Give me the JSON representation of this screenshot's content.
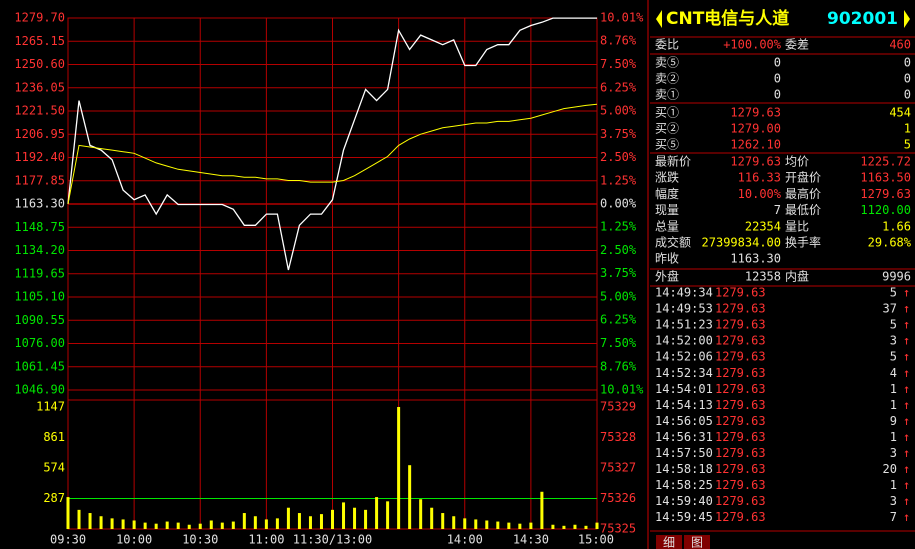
{
  "chart_data": [
    {
      "type": "line",
      "x": [
        "09:30",
        "09:35",
        "09:40",
        "09:45",
        "09:50",
        "09:55",
        "10:00",
        "10:05",
        "10:10",
        "10:15",
        "10:20",
        "10:25",
        "10:30",
        "10:35",
        "10:40",
        "10:45",
        "10:50",
        "10:55",
        "11:00",
        "11:05",
        "11:10",
        "11:15",
        "11:20",
        "11:25",
        "11:30",
        "13:05",
        "13:10",
        "13:15",
        "13:20",
        "13:25",
        "13:30",
        "13:35",
        "13:40",
        "13:45",
        "13:50",
        "13:55",
        "14:00",
        "14:05",
        "14:10",
        "14:15",
        "14:20",
        "14:25",
        "14:30",
        "14:35",
        "14:40",
        "14:45",
        "14:50",
        "14:55",
        "15:00"
      ],
      "series": [
        {
          "color": "#ffffff",
          "values": [
            1163.3,
            1228,
            1200,
            1197,
            1191,
            1172,
            1166,
            1169,
            1157,
            1169,
            1163,
            1163,
            1163,
            1163,
            1163,
            1160,
            1150,
            1150,
            1157,
            1157,
            1122,
            1150,
            1157,
            1157,
            1166,
            1197,
            1216,
            1235,
            1228,
            1235,
            1272,
            1260,
            1269,
            1266,
            1263,
            1266,
            1250,
            1250,
            1260,
            1263,
            1263,
            1272,
            1275,
            1277,
            1279.63,
            1279.63,
            1279.63,
            1279.63,
            1279.63
          ]
        },
        {
          "color": "#ffff00",
          "values": [
            1163.3,
            1200,
            1199,
            1198,
            1197,
            1196,
            1195,
            1192,
            1189,
            1187,
            1185,
            1184,
            1183,
            1182,
            1181,
            1181,
            1180,
            1180,
            1179,
            1179,
            1178,
            1178,
            1177,
            1177,
            1177,
            1178,
            1181,
            1185,
            1189,
            1193,
            1200,
            1204,
            1207,
            1209,
            1211,
            1212,
            1213,
            1214,
            1214,
            1215,
            1215,
            1216,
            1217,
            1219,
            1221,
            1223,
            1224,
            1225,
            1225.72
          ]
        }
      ],
      "ylim": [
        1046.9,
        1279.7
      ],
      "yticks": [
        {
          "value": 1279.7,
          "label": "1279.70"
        },
        1265.15,
        {
          "value": 1250.6,
          "label": "1250.60"
        },
        1236.05,
        {
          "value": 1221.5,
          "label": "1221.50"
        },
        1206.95,
        {
          "value": 1192.4,
          "label": "1192.40"
        },
        1177.85,
        {
          "value": 1163.3,
          "label": "1163.30"
        },
        1148.75,
        {
          "value": 1134.2,
          "label": "1134.20"
        },
        1119.65,
        {
          "value": 1105.1,
          "label": "1105.10"
        },
        1090.55,
        {
          "value": 1076,
          "label": "1076.00"
        },
        1061.45,
        {
          "value": 1046.9,
          "label": "1046.90"
        }
      ],
      "y2lim": [
        -10.01,
        10.01
      ],
      "y2ticks": [
        {
          "value": 10.01,
          "label": "10.01%"
        },
        {
          "value": 8.76,
          "label": "8.76%"
        },
        {
          "value": 7.5,
          "label": "7.50%"
        },
        {
          "value": 6.25,
          "label": "6.25%"
        },
        {
          "value": 5,
          "label": "5.00%"
        },
        {
          "value": 3.75,
          "label": "3.75%"
        },
        {
          "value": 2.5,
          "label": "2.50%"
        },
        {
          "value": 1.25,
          "label": "1.25%"
        },
        {
          "value": 0,
          "label": "0.00%"
        },
        {
          "value": -1.25,
          "label": "1.25%"
        },
        {
          "value": -2.5,
          "label": "2.50%"
        },
        {
          "value": -3.75,
          "label": "3.75%"
        },
        {
          "value": -5,
          "label": "5.00%"
        },
        {
          "value": -6.25,
          "label": "6.25%"
        },
        {
          "value": -7.5,
          "label": "7.50%"
        },
        {
          "value": -8.76,
          "label": "8.76%"
        },
        {
          "value": -10.01,
          "label": "10.01%"
        }
      ],
      "grid": true
    },
    {
      "type": "bar",
      "x": [
        "09:30",
        "09:35",
        "09:40",
        "09:45",
        "09:50",
        "09:55",
        "10:00",
        "10:05",
        "10:10",
        "10:15",
        "10:20",
        "10:25",
        "10:30",
        "10:35",
        "10:40",
        "10:45",
        "10:50",
        "10:55",
        "11:00",
        "11:05",
        "11:10",
        "11:15",
        "11:20",
        "11:25",
        "11:30",
        "13:05",
        "13:10",
        "13:15",
        "13:20",
        "13:25",
        "13:30",
        "13:35",
        "13:40",
        "13:45",
        "13:50",
        "13:55",
        "14:00",
        "14:05",
        "14:10",
        "14:15",
        "14:20",
        "14:25",
        "14:30",
        "14:35",
        "14:40",
        "14:45",
        "14:50",
        "14:55",
        "15:00"
      ],
      "color": "#ffff00",
      "values": [
        300,
        180,
        150,
        120,
        100,
        90,
        80,
        60,
        50,
        70,
        60,
        40,
        50,
        80,
        60,
        70,
        150,
        120,
        90,
        100,
        200,
        150,
        120,
        140,
        180,
        250,
        200,
        180,
        300,
        260,
        1147,
        600,
        280,
        200,
        150,
        120,
        100,
        90,
        80,
        70,
        60,
        50,
        60,
        350,
        40,
        30,
        40,
        30,
        60
      ],
      "ylim": [
        0,
        1147
      ],
      "yticks": [
        287,
        574,
        861,
        1147
      ],
      "y2lim": [
        75325,
        75329
      ],
      "y2ticks": [
        75325,
        75326,
        75327,
        75328,
        75329
      ],
      "xticks": [
        "09:30",
        "10:00",
        "10:30",
        "11:00",
        "11:30/13:00",
        "14:00",
        "14:30",
        "15:00"
      ]
    }
  ],
  "panel": {
    "name": "CNT电信与人道",
    "code": "902001",
    "ratio": {
      "label": "委比",
      "value": "+100.00%",
      "label2": "委差",
      "value2": "460"
    },
    "asks": [
      {
        "label": "卖⑤",
        "price": "0",
        "volume": "0"
      },
      {
        "label": "卖②",
        "price": "0",
        "volume": "0"
      },
      {
        "label": "卖①",
        "price": "0",
        "volume": "0"
      }
    ],
    "bids": [
      {
        "label": "买①",
        "price": "1279.63",
        "volume": "454"
      },
      {
        "label": "买②",
        "price": "1279.00",
        "volume": "1"
      },
      {
        "label": "买⑤",
        "price": "1262.10",
        "volume": "5"
      }
    ],
    "stats": [
      {
        "label": "最新价",
        "value": "1279.63",
        "label2": "均价",
        "value2": "1225.72"
      },
      {
        "label": "涨跌",
        "value": "116.33",
        "label2": "开盘价",
        "value2": "1163.50"
      },
      {
        "label": "幅度",
        "value": "10.00%",
        "label2": "最高价",
        "value2": "1279.63"
      },
      {
        "label": "现量",
        "value": "7",
        "label2": "最低价",
        "value2": "1120.00"
      },
      {
        "label": "总量",
        "value": "22354",
        "label2": "量比",
        "value2": "1.66"
      },
      {
        "label": "成交额",
        "value": "27399834.00",
        "label2": "换手率",
        "value2": "29.68%"
      },
      {
        "label": "昨收",
        "value": "1163.30"
      }
    ],
    "outer": {
      "label": "外盘",
      "value": "12358",
      "label2": "内盘",
      "value2": "9996"
    },
    "trades": [
      {
        "time": "14:49:34",
        "price": "1279.63",
        "volume": "5",
        "arrow": "↑"
      },
      {
        "time": "14:49:53",
        "price": "1279.63",
        "volume": "37",
        "arrow": "↑"
      },
      {
        "time": "14:51:23",
        "price": "1279.63",
        "volume": "5",
        "arrow": "↑"
      },
      {
        "time": "14:52:00",
        "price": "1279.63",
        "volume": "3",
        "arrow": "↑"
      },
      {
        "time": "14:52:06",
        "price": "1279.63",
        "volume": "5",
        "arrow": "↑"
      },
      {
        "time": "14:52:34",
        "price": "1279.63",
        "volume": "4",
        "arrow": "↑"
      },
      {
        "time": "14:54:01",
        "price": "1279.63",
        "volume": "1",
        "arrow": "↑"
      },
      {
        "time": "14:54:13",
        "price": "1279.63",
        "volume": "1",
        "arrow": "↑"
      },
      {
        "time": "14:56:05",
        "price": "1279.63",
        "volume": "9",
        "arrow": "↑"
      },
      {
        "time": "14:56:31",
        "price": "1279.63",
        "volume": "1",
        "arrow": "↑"
      },
      {
        "time": "14:57:50",
        "price": "1279.63",
        "volume": "3",
        "arrow": "↑"
      },
      {
        "time": "14:58:18",
        "price": "1279.63",
        "volume": "20",
        "arrow": "↑"
      },
      {
        "time": "14:58:25",
        "price": "1279.63",
        "volume": "1",
        "arrow": "↑"
      },
      {
        "time": "14:59:40",
        "price": "1279.63",
        "volume": "3",
        "arrow": "↑"
      },
      {
        "time": "14:59:45",
        "price": "1279.63",
        "volume": "7",
        "arrow": "↑"
      }
    ],
    "tabs": [
      "细",
      "图"
    ]
  }
}
